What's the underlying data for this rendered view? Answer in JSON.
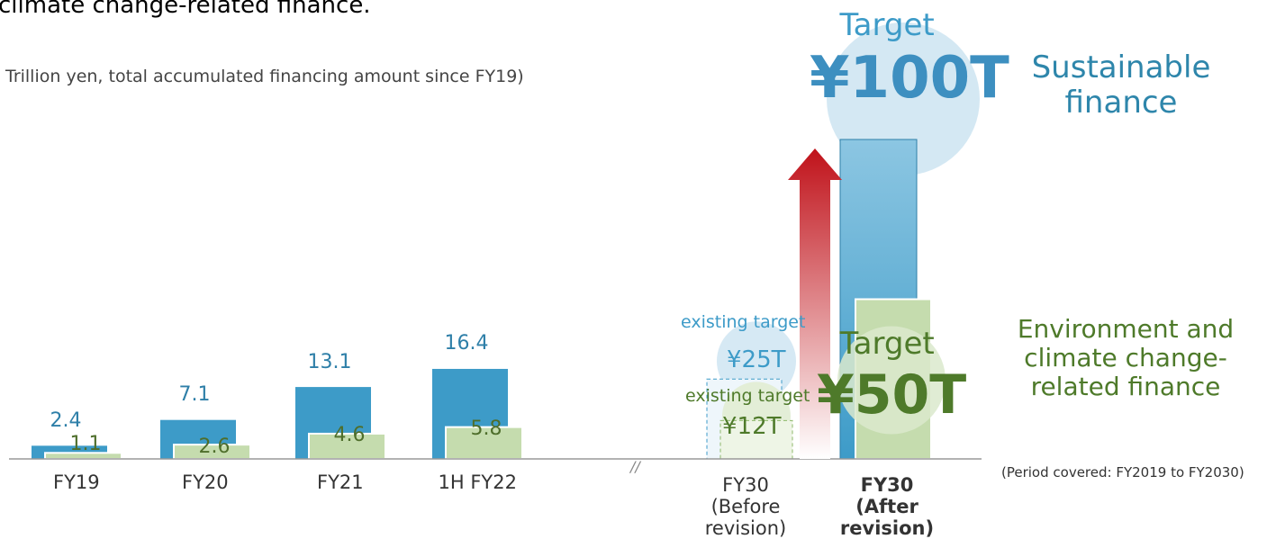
{
  "title": "climate change-related finance.",
  "subtitle": "Trillion yen, total accumulated financing amount since FY19)",
  "chart_data": {
    "type": "bar",
    "categories": [
      "FY19",
      "FY20",
      "FY21",
      "1H FY22"
    ],
    "series": [
      {
        "name": "Sustainable finance",
        "color": "#3d9bc8",
        "values": [
          2.4,
          7.1,
          13.1,
          16.4
        ]
      },
      {
        "name": "Environment and climate change-related finance",
        "color": "#c5dcae",
        "values": [
          1.1,
          2.6,
          4.6,
          5.8
        ]
      }
    ],
    "targets": [
      {
        "category": "FY30 (Before revision)",
        "annotation": "existing target",
        "values": [
          25,
          12
        ],
        "value_labels": [
          "¥25T",
          "¥12T"
        ]
      },
      {
        "category": "FY30 (After revision)",
        "annotation": "Target",
        "values": [
          100,
          50
        ],
        "value_labels": [
          "¥100T",
          "¥50T"
        ]
      }
    ],
    "note": "(Period covered: FY2019 to FY2030)"
  }
}
